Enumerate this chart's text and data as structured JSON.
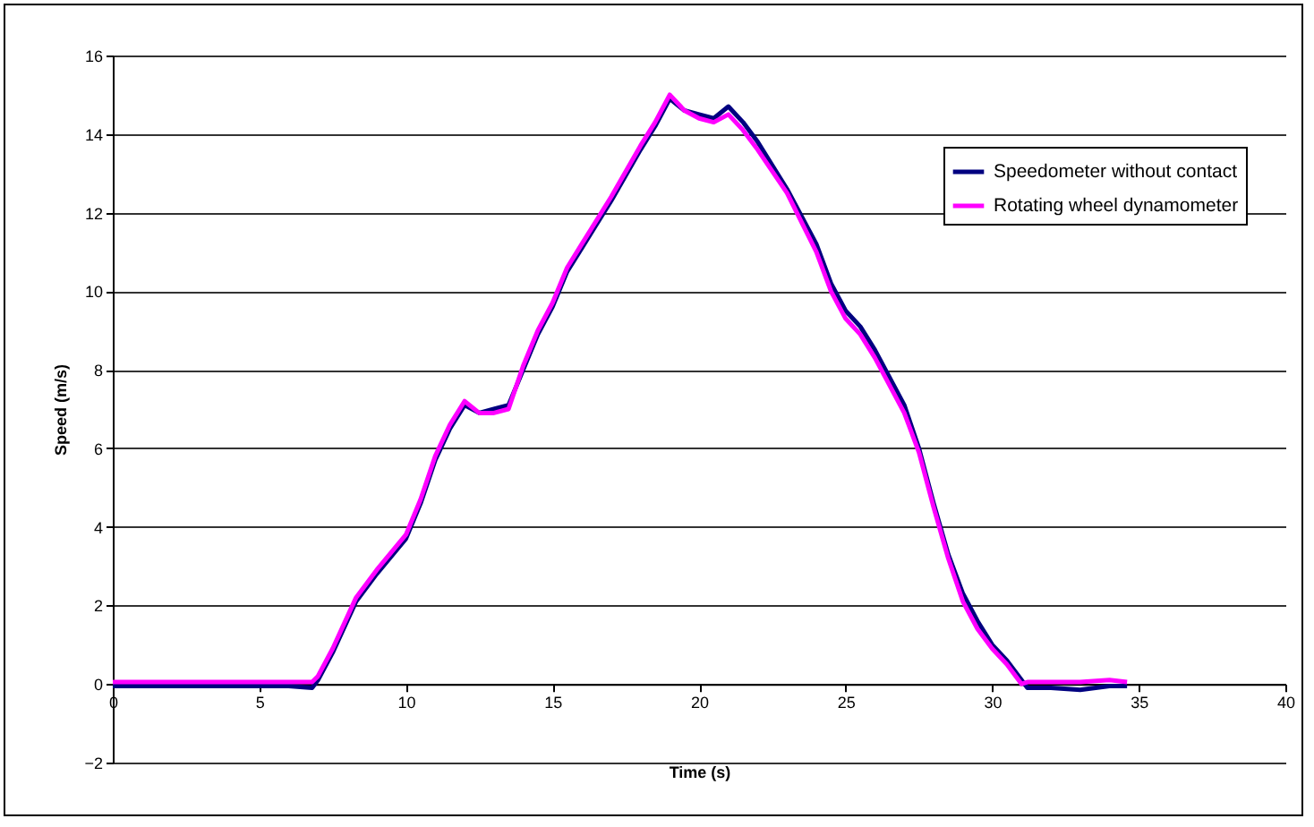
{
  "chart_data": {
    "type": "line",
    "xlabel": "Time (s)",
    "ylabel": "Speed (m/s)",
    "xlim": [
      0,
      40
    ],
    "xticks": [
      0,
      5,
      10,
      15,
      20,
      25,
      30,
      35,
      40
    ],
    "ylim": [
      -2,
      16
    ],
    "yticks": [
      -2,
      0,
      2,
      4,
      6,
      8,
      10,
      12,
      14,
      16
    ],
    "grid": "y",
    "legend": "top right",
    "line_style": "solid",
    "marker": "none",
    "series": [
      {
        "name": "Speedometer without contact",
        "color": "#000080",
        "x": [
          0,
          3,
          6,
          6.8,
          7,
          7.5,
          8.3,
          9,
          10,
          10.5,
          11,
          11.5,
          12,
          12.5,
          13,
          13.5,
          14,
          14.5,
          15,
          15.5,
          16,
          17,
          18,
          18.5,
          19,
          19.5,
          20,
          20.5,
          21,
          21.5,
          22,
          23,
          24,
          24.5,
          25,
          25.5,
          26,
          27,
          27.5,
          28,
          28.5,
          29,
          29.5,
          30,
          30.5,
          31,
          31.2,
          32,
          33,
          34,
          34.6
        ],
        "values": [
          -0.05,
          -0.05,
          -0.05,
          -0.1,
          0.1,
          0.8,
          2.1,
          2.8,
          3.7,
          4.6,
          5.7,
          6.5,
          7.1,
          6.9,
          7.0,
          7.1,
          8.0,
          8.9,
          9.6,
          10.5,
          11.1,
          12.3,
          13.6,
          14.2,
          14.9,
          14.6,
          14.5,
          14.4,
          14.7,
          14.3,
          13.8,
          12.6,
          11.2,
          10.2,
          9.5,
          9.1,
          8.5,
          7.1,
          6.0,
          4.6,
          3.3,
          2.3,
          1.6,
          1.0,
          0.6,
          0.1,
          -0.1,
          -0.1,
          -0.15,
          -0.05,
          -0.05
        ]
      },
      {
        "name": "Rotating wheel dynamometer",
        "color": "#ff00ff",
        "x": [
          0,
          3,
          6,
          6.8,
          7,
          7.5,
          8.3,
          9,
          10,
          10.5,
          11,
          11.5,
          12,
          12.5,
          13,
          13.5,
          14,
          14.5,
          15,
          15.5,
          16,
          17,
          18,
          18.5,
          19,
          19.5,
          20,
          20.5,
          21,
          21.5,
          22,
          23,
          24,
          24.5,
          25,
          25.5,
          26,
          27,
          27.5,
          28,
          28.5,
          29,
          29.5,
          30,
          30.5,
          31,
          31.2,
          32,
          33,
          34,
          34.6
        ],
        "values": [
          0.05,
          0.05,
          0.05,
          0.05,
          0.2,
          0.9,
          2.2,
          2.9,
          3.8,
          4.7,
          5.8,
          6.6,
          7.2,
          6.9,
          6.9,
          7.0,
          8.1,
          9.0,
          9.7,
          10.6,
          11.2,
          12.4,
          13.7,
          14.3,
          15.0,
          14.6,
          14.4,
          14.3,
          14.5,
          14.1,
          13.6,
          12.5,
          11.0,
          10.0,
          9.3,
          8.9,
          8.3,
          6.9,
          5.9,
          4.5,
          3.2,
          2.1,
          1.4,
          0.9,
          0.5,
          0.0,
          0.05,
          0.05,
          0.05,
          0.1,
          0.05
        ]
      }
    ]
  }
}
